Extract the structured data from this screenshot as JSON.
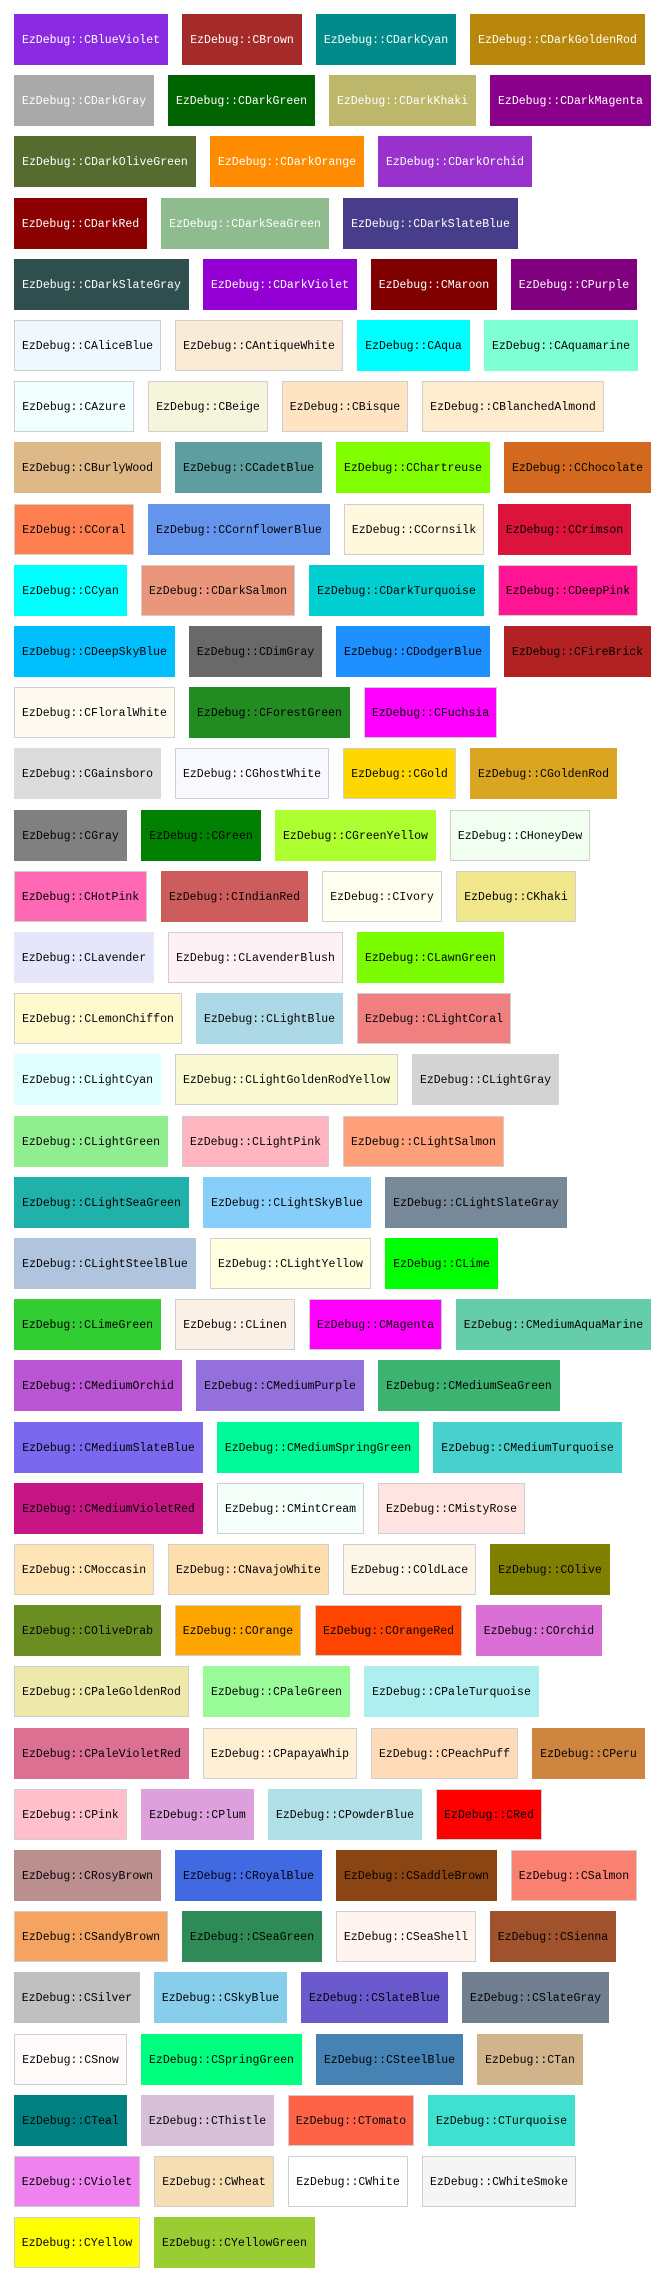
{
  "rows": [
    [
      {
        "label": "EzDebug::CBlueViolet",
        "bg": "#8A2BE2",
        "fg": "#ffffff"
      },
      {
        "label": "EzDebug::CBrown",
        "bg": "#A52A2A",
        "fg": "#ffffff"
      },
      {
        "label": "EzDebug::CDarkCyan",
        "bg": "#008B8B",
        "fg": "#ffffff"
      },
      {
        "label": "EzDebug::CDarkGoldenRod",
        "bg": "#B8860B",
        "fg": "#ffffff"
      }
    ],
    [
      {
        "label": "EzDebug::CDarkGray",
        "bg": "#A9A9A9",
        "fg": "#ffffff"
      },
      {
        "label": "EzDebug::CDarkGreen",
        "bg": "#006400",
        "fg": "#ffffff"
      },
      {
        "label": "EzDebug::CDarkKhaki",
        "bg": "#BDB76B",
        "fg": "#ffffff"
      },
      {
        "label": "EzDebug::CDarkMagenta",
        "bg": "#8B008B",
        "fg": "#ffffff"
      }
    ],
    [
      {
        "label": "EzDebug::CDarkOliveGreen",
        "bg": "#556B2F",
        "fg": "#ffffff"
      },
      {
        "label": "EzDebug::CDarkOrange",
        "bg": "#FF8C00",
        "fg": "#ffffff"
      },
      {
        "label": "EzDebug::CDarkOrchid",
        "bg": "#9932CC",
        "fg": "#ffffff"
      }
    ],
    [
      {
        "label": "EzDebug::CDarkRed",
        "bg": "#8B0000",
        "fg": "#ffffff"
      },
      {
        "label": "EzDebug::CDarkSeaGreen",
        "bg": "#8FBC8F",
        "fg": "#ffffff"
      },
      {
        "label": "EzDebug::CDarkSlateBlue",
        "bg": "#483D8B",
        "fg": "#ffffff"
      }
    ],
    [
      {
        "label": "EzDebug::CDarkSlateGray",
        "bg": "#2F4F4F",
        "fg": "#ffffff"
      },
      {
        "label": "EzDebug::CDarkViolet",
        "bg": "#9400D3",
        "fg": "#ffffff"
      },
      {
        "label": "EzDebug::CMaroon",
        "bg": "#800000",
        "fg": "#ffffff"
      },
      {
        "label": "EzDebug::CPurple",
        "bg": "#800080",
        "fg": "#ffffff"
      }
    ],
    [
      {
        "label": "EzDebug::CAliceBlue",
        "bg": "#F0F8FF",
        "fg": "#000000"
      },
      {
        "label": "EzDebug::CAntiqueWhite",
        "bg": "#FAEBD7",
        "fg": "#000000"
      },
      {
        "label": "EzDebug::CAqua",
        "bg": "#00FFFF",
        "fg": "#000000"
      },
      {
        "label": "EzDebug::CAquamarine",
        "bg": "#7FFFD4",
        "fg": "#000000"
      }
    ],
    [
      {
        "label": "EzDebug::CAzure",
        "bg": "#F0FFFF",
        "fg": "#000000"
      },
      {
        "label": "EzDebug::CBeige",
        "bg": "#F5F5DC",
        "fg": "#000000"
      },
      {
        "label": "EzDebug::CBisque",
        "bg": "#FFE4C4",
        "fg": "#000000"
      },
      {
        "label": "EzDebug::CBlanchedAlmond",
        "bg": "#FFEBCD",
        "fg": "#000000"
      }
    ],
    [
      {
        "label": "EzDebug::CBurlyWood",
        "bg": "#DEB887",
        "fg": "#000000"
      },
      {
        "label": "EzDebug::CCadetBlue",
        "bg": "#5F9EA0",
        "fg": "#000000"
      },
      {
        "label": "EzDebug::CChartreuse",
        "bg": "#7FFF00",
        "fg": "#000000"
      },
      {
        "label": "EzDebug::CChocolate",
        "bg": "#D2691E",
        "fg": "#000000"
      }
    ],
    [
      {
        "label": "EzDebug::CCoral",
        "bg": "#FF7F50",
        "fg": "#000000"
      },
      {
        "label": "EzDebug::CCornflowerBlue",
        "bg": "#6495ED",
        "fg": "#000000"
      },
      {
        "label": "EzDebug::CCornsilk",
        "bg": "#FFF8DC",
        "fg": "#000000"
      },
      {
        "label": "EzDebug::CCrimson",
        "bg": "#DC143C",
        "fg": "#000000"
      }
    ],
    [
      {
        "label": "EzDebug::CCyan",
        "bg": "#00FFFF",
        "fg": "#000000"
      },
      {
        "label": "EzDebug::CDarkSalmon",
        "bg": "#E9967A",
        "fg": "#000000"
      },
      {
        "label": "EzDebug::CDarkTurquoise",
        "bg": "#00CED1",
        "fg": "#000000"
      },
      {
        "label": "EzDebug::CDeepPink",
        "bg": "#FF1493",
        "fg": "#000000"
      }
    ],
    [
      {
        "label": "EzDebug::CDeepSkyBlue",
        "bg": "#00BFFF",
        "fg": "#000000"
      },
      {
        "label": "EzDebug::CDimGray",
        "bg": "#696969",
        "fg": "#000000"
      },
      {
        "label": "EzDebug::CDodgerBlue",
        "bg": "#1E90FF",
        "fg": "#000000"
      },
      {
        "label": "EzDebug::CFireBrick",
        "bg": "#B22222",
        "fg": "#000000"
      }
    ],
    [
      {
        "label": "EzDebug::CFloralWhite",
        "bg": "#FFFAF0",
        "fg": "#000000"
      },
      {
        "label": "EzDebug::CForestGreen",
        "bg": "#228B22",
        "fg": "#000000"
      },
      {
        "label": "EzDebug::CFuchsia",
        "bg": "#FF00FF",
        "fg": "#000000"
      }
    ],
    [
      {
        "label": "EzDebug::CGainsboro",
        "bg": "#DCDCDC",
        "fg": "#000000"
      },
      {
        "label": "EzDebug::CGhostWhite",
        "bg": "#F8F8FF",
        "fg": "#000000"
      },
      {
        "label": "EzDebug::CGold",
        "bg": "#FFD700",
        "fg": "#000000"
      },
      {
        "label": "EzDebug::CGoldenRod",
        "bg": "#DAA520",
        "fg": "#000000"
      }
    ],
    [
      {
        "label": "EzDebug::CGray",
        "bg": "#808080",
        "fg": "#000000"
      },
      {
        "label": "EzDebug::CGreen",
        "bg": "#008000",
        "fg": "#000000"
      },
      {
        "label": "EzDebug::CGreenYellow",
        "bg": "#ADFF2F",
        "fg": "#000000"
      },
      {
        "label": "EzDebug::CHoneyDew",
        "bg": "#F0FFF0",
        "fg": "#000000"
      }
    ],
    [
      {
        "label": "EzDebug::CHotPink",
        "bg": "#FF69B4",
        "fg": "#000000"
      },
      {
        "label": "EzDebug::CIndianRed",
        "bg": "#CD5C5C",
        "fg": "#000000"
      },
      {
        "label": "EzDebug::CIvory",
        "bg": "#FFFFF0",
        "fg": "#000000"
      },
      {
        "label": "EzDebug::CKhaki",
        "bg": "#F0E68C",
        "fg": "#000000"
      }
    ],
    [
      {
        "label": "EzDebug::CLavender",
        "bg": "#E6E6FA",
        "fg": "#000000"
      },
      {
        "label": "EzDebug::CLavenderBlush",
        "bg": "#FFF0F5",
        "fg": "#000000"
      },
      {
        "label": "EzDebug::CLawnGreen",
        "bg": "#7CFC00",
        "fg": "#000000"
      }
    ],
    [
      {
        "label": "EzDebug::CLemonChiffon",
        "bg": "#FFFACD",
        "fg": "#000000"
      },
      {
        "label": "EzDebug::CLightBlue",
        "bg": "#ADD8E6",
        "fg": "#000000"
      },
      {
        "label": "EzDebug::CLightCoral",
        "bg": "#F08080",
        "fg": "#000000"
      }
    ],
    [
      {
        "label": "EzDebug::CLightCyan",
        "bg": "#E0FFFF",
        "fg": "#000000"
      },
      {
        "label": "EzDebug::CLightGoldenRodYellow",
        "bg": "#FAFAD2",
        "fg": "#000000"
      },
      {
        "label": "EzDebug::CLightGray",
        "bg": "#D3D3D3",
        "fg": "#000000"
      }
    ],
    [
      {
        "label": "EzDebug::CLightGreen",
        "bg": "#90EE90",
        "fg": "#000000"
      },
      {
        "label": "EzDebug::CLightPink",
        "bg": "#FFB6C1",
        "fg": "#000000"
      },
      {
        "label": "EzDebug::CLightSalmon",
        "bg": "#FFA07A",
        "fg": "#000000"
      }
    ],
    [
      {
        "label": "EzDebug::CLightSeaGreen",
        "bg": "#20B2AA",
        "fg": "#000000"
      },
      {
        "label": "EzDebug::CLightSkyBlue",
        "bg": "#87CEFA",
        "fg": "#000000"
      },
      {
        "label": "EzDebug::CLightSlateGray",
        "bg": "#778899",
        "fg": "#000000"
      }
    ],
    [
      {
        "label": "EzDebug::CLightSteelBlue",
        "bg": "#B0C4DE",
        "fg": "#000000"
      },
      {
        "label": "EzDebug::CLightYellow",
        "bg": "#FFFFE0",
        "fg": "#000000"
      },
      {
        "label": "EzDebug::CLime",
        "bg": "#00FF00",
        "fg": "#000000"
      }
    ],
    [
      {
        "label": "EzDebug::CLimeGreen",
        "bg": "#32CD32",
        "fg": "#000000"
      },
      {
        "label": "EzDebug::CLinen",
        "bg": "#FAF0E6",
        "fg": "#000000"
      },
      {
        "label": "EzDebug::CMagenta",
        "bg": "#FF00FF",
        "fg": "#000000"
      },
      {
        "label": "EzDebug::CMediumAquaMarine",
        "bg": "#66CDAA",
        "fg": "#000000"
      }
    ],
    [
      {
        "label": "EzDebug::CMediumOrchid",
        "bg": "#BA55D3",
        "fg": "#000000"
      },
      {
        "label": "EzDebug::CMediumPurple",
        "bg": "#9370DB",
        "fg": "#000000"
      },
      {
        "label": "EzDebug::CMediumSeaGreen",
        "bg": "#3CB371",
        "fg": "#000000"
      }
    ],
    [
      {
        "label": "EzDebug::CMediumSlateBlue",
        "bg": "#7B68EE",
        "fg": "#000000"
      },
      {
        "label": "EzDebug::CMediumSpringGreen",
        "bg": "#00FA9A",
        "fg": "#000000"
      },
      {
        "label": "EzDebug::CMediumTurquoise",
        "bg": "#48D1CC",
        "fg": "#000000"
      }
    ],
    [
      {
        "label": "EzDebug::CMediumVioletRed",
        "bg": "#C71585",
        "fg": "#000000"
      },
      {
        "label": "EzDebug::CMintCream",
        "bg": "#F5FFFA",
        "fg": "#000000"
      },
      {
        "label": "EzDebug::CMistyRose",
        "bg": "#FFE4E1",
        "fg": "#000000"
      }
    ],
    [
      {
        "label": "EzDebug::CMoccasin",
        "bg": "#FFE4B5",
        "fg": "#000000"
      },
      {
        "label": "EzDebug::CNavajoWhite",
        "bg": "#FFDEAD",
        "fg": "#000000"
      },
      {
        "label": "EzDebug::COldLace",
        "bg": "#FDF5E6",
        "fg": "#000000"
      },
      {
        "label": "EzDebug::COlive",
        "bg": "#808000",
        "fg": "#000000"
      }
    ],
    [
      {
        "label": "EzDebug::COliveDrab",
        "bg": "#6B8E23",
        "fg": "#000000"
      },
      {
        "label": "EzDebug::COrange",
        "bg": "#FFA500",
        "fg": "#000000"
      },
      {
        "label": "EzDebug::COrangeRed",
        "bg": "#FF4500",
        "fg": "#000000"
      },
      {
        "label": "EzDebug::COrchid",
        "bg": "#DA70D6",
        "fg": "#000000"
      }
    ],
    [
      {
        "label": "EzDebug::CPaleGoldenRod",
        "bg": "#EEE8AA",
        "fg": "#000000"
      },
      {
        "label": "EzDebug::CPaleGreen",
        "bg": "#98FB98",
        "fg": "#000000"
      },
      {
        "label": "EzDebug::CPaleTurquoise",
        "bg": "#AFEEEE",
        "fg": "#000000"
      }
    ],
    [
      {
        "label": "EzDebug::CPaleVioletRed",
        "bg": "#DB7093",
        "fg": "#000000"
      },
      {
        "label": "EzDebug::CPapayaWhip",
        "bg": "#FFEFD5",
        "fg": "#000000"
      },
      {
        "label": "EzDebug::CPeachPuff",
        "bg": "#FFDAB9",
        "fg": "#000000"
      },
      {
        "label": "EzDebug::CPeru",
        "bg": "#CD853F",
        "fg": "#000000"
      }
    ],
    [
      {
        "label": "EzDebug::CPink",
        "bg": "#FFC0CB",
        "fg": "#000000"
      },
      {
        "label": "EzDebug::CPlum",
        "bg": "#DDA0DD",
        "fg": "#000000"
      },
      {
        "label": "EzDebug::CPowderBlue",
        "bg": "#B0E0E6",
        "fg": "#000000"
      },
      {
        "label": "EzDebug::CRed",
        "bg": "#FF0000",
        "fg": "#000000"
      }
    ],
    [
      {
        "label": "EzDebug::CRosyBrown",
        "bg": "#BC8F8F",
        "fg": "#000000"
      },
      {
        "label": "EzDebug::CRoyalBlue",
        "bg": "#4169E1",
        "fg": "#000000"
      },
      {
        "label": "EzDebug::CSaddleBrown",
        "bg": "#8B4513",
        "fg": "#000000"
      },
      {
        "label": "EzDebug::CSalmon",
        "bg": "#FA8072",
        "fg": "#000000"
      }
    ],
    [
      {
        "label": "EzDebug::CSandyBrown",
        "bg": "#F4A460",
        "fg": "#000000"
      },
      {
        "label": "EzDebug::CSeaGreen",
        "bg": "#2E8B57",
        "fg": "#000000"
      },
      {
        "label": "EzDebug::CSeaShell",
        "bg": "#FFF5EE",
        "fg": "#000000"
      },
      {
        "label": "EzDebug::CSienna",
        "bg": "#A0522D",
        "fg": "#000000"
      }
    ],
    [
      {
        "label": "EzDebug::CSilver",
        "bg": "#C0C0C0",
        "fg": "#000000"
      },
      {
        "label": "EzDebug::CSkyBlue",
        "bg": "#87CEEB",
        "fg": "#000000"
      },
      {
        "label": "EzDebug::CSlateBlue",
        "bg": "#6A5ACD",
        "fg": "#000000"
      },
      {
        "label": "EzDebug::CSlateGray",
        "bg": "#708090",
        "fg": "#000000"
      }
    ],
    [
      {
        "label": "EzDebug::CSnow",
        "bg": "#FFFAFA",
        "fg": "#000000"
      },
      {
        "label": "EzDebug::CSpringGreen",
        "bg": "#00FF7F",
        "fg": "#000000"
      },
      {
        "label": "EzDebug::CSteelBlue",
        "bg": "#4682B4",
        "fg": "#000000"
      },
      {
        "label": "EzDebug::CTan",
        "bg": "#D2B48C",
        "fg": "#000000"
      }
    ],
    [
      {
        "label": "EzDebug::CTeal",
        "bg": "#008080",
        "fg": "#000000"
      },
      {
        "label": "EzDebug::CThistle",
        "bg": "#D8BFD8",
        "fg": "#000000"
      },
      {
        "label": "EzDebug::CTomato",
        "bg": "#FF6347",
        "fg": "#000000"
      },
      {
        "label": "EzDebug::CTurquoise",
        "bg": "#40E0D0",
        "fg": "#000000"
      }
    ],
    [
      {
        "label": "EzDebug::CViolet",
        "bg": "#EE82EE",
        "fg": "#000000"
      },
      {
        "label": "EzDebug::CWheat",
        "bg": "#F5DEB3",
        "fg": "#000000"
      },
      {
        "label": "EzDebug::CWhite",
        "bg": "#FFFFFF",
        "fg": "#000000"
      },
      {
        "label": "EzDebug::CWhiteSmoke",
        "bg": "#F5F5F5",
        "fg": "#000000"
      }
    ],
    [
      {
        "label": "EzDebug::CYellow",
        "bg": "#FFFF00",
        "fg": "#000000"
      },
      {
        "label": "EzDebug::CYellowGreen",
        "bg": "#9ACD32",
        "fg": "#000000"
      }
    ]
  ]
}
